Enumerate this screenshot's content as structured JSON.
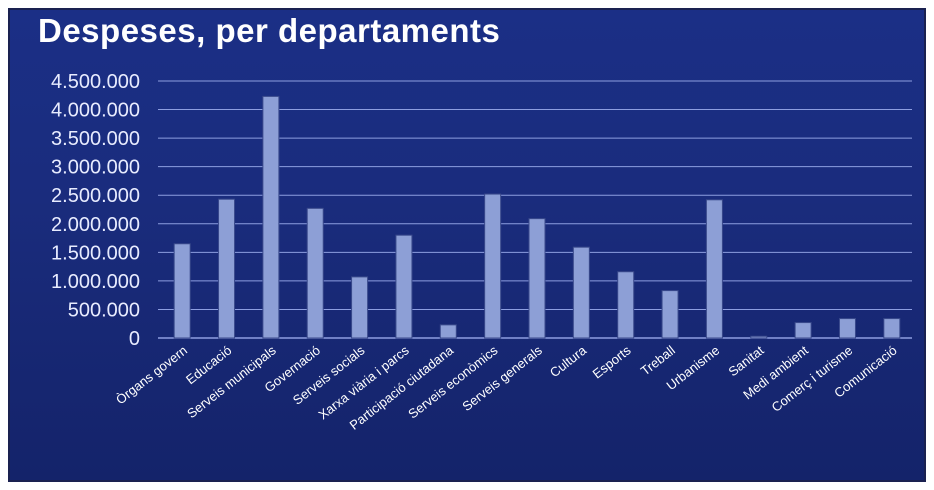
{
  "chart_data": {
    "type": "bar",
    "title": "Despeses, per departaments",
    "xlabel": "",
    "ylabel": "",
    "ylim": [
      0,
      4500000
    ],
    "yticks": [
      "0",
      "500.000",
      "1.000.000",
      "1.500.000",
      "2.000.000",
      "2.500.000",
      "3.000.000",
      "3.500.000",
      "4.000.000",
      "4.500.000"
    ],
    "grid": true,
    "categories": [
      "Òrgans govern",
      "Educació",
      "Serveis municipals",
      "Governació",
      "Serveis socials",
      "Xarxa viària i parcs",
      "Participació ciutadana",
      "Serveis econòmics",
      "Serveis generals",
      "Cultura",
      "Esports",
      "Treball",
      "Urbanisme",
      "Sanitat",
      "Medi ambient",
      "Comerç i turisme",
      "Comunicació"
    ],
    "values": [
      1650000,
      2430000,
      4230000,
      2270000,
      1070000,
      1800000,
      230000,
      2520000,
      2090000,
      1590000,
      1160000,
      830000,
      2420000,
      30000,
      270000,
      340000,
      340000
    ],
    "colors": {
      "bar": "#8d9fd6",
      "bar_edge": "#3a4a8c",
      "grid": "#8d9ee0",
      "background": "#1b2f86"
    }
  }
}
